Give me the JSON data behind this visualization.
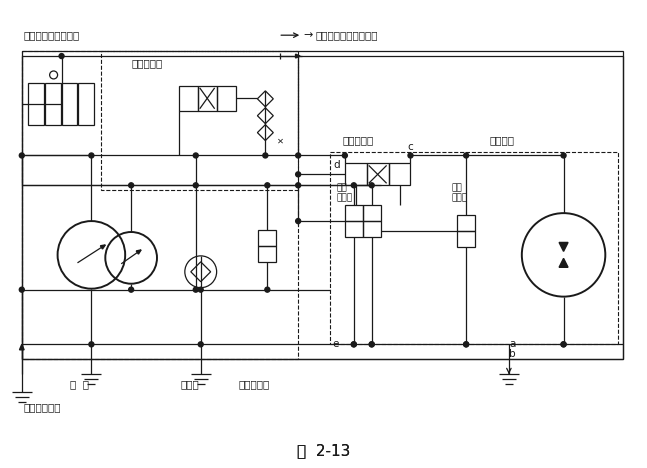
{
  "title": "图  2-13",
  "bg_color": "#ffffff",
  "line_color": "#1a1a1a",
  "labels": {
    "main_pump_valve": "主液壓泵流量控制阀",
    "from_system": "來自拌和系統壓力油路",
    "power_dist": "功率分配鄀",
    "hydraulic_dir": "液壓換向鄀",
    "hydraulic_motor": "液壓馬達",
    "high_pressure_1": "高氏",
    "high_pressure_2": "安全鄀",
    "cooling_1": "冷卻",
    "cooling_2": "溢流鄀",
    "main_pump": "主  泵",
    "charge_pump": "補油泵",
    "charge_relief": "補油溢流鄀",
    "from_steering_sys": "來自轉向系統",
    "label_c": "c",
    "label_d": "d",
    "label_e": "e",
    "label_a": "a",
    "label_b": "b"
  },
  "font_size": 7.5,
  "title_font_size": 11
}
